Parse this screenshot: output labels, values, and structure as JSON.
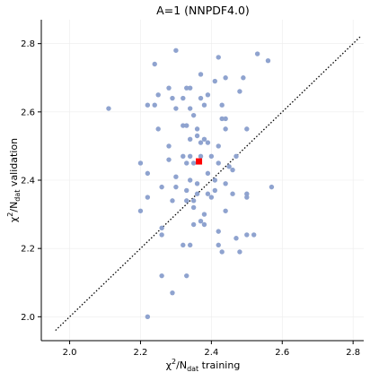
{
  "chart_data": {
    "type": "scatter",
    "title": "A=1 (NNPDF4.0)",
    "xlabel": {
      "prefix": "χ",
      "sup": "2",
      "mid": "/N",
      "sub": "dat",
      "suffix": " training"
    },
    "ylabel": {
      "prefix": "χ",
      "sup": "2",
      "mid": "/N",
      "sub": "dat",
      "suffix": " validation"
    },
    "xlim": [
      1.92,
      2.83
    ],
    "ylim": [
      1.93,
      2.87
    ],
    "xticks": [
      "2.0",
      "2.2",
      "2.4",
      "2.6",
      "2.8"
    ],
    "yticks": [
      "2.0",
      "2.2",
      "2.4",
      "2.6",
      "2.8"
    ],
    "grid": true,
    "colors": {
      "replicas": "#8fa3cf",
      "central": "#ff0000",
      "diagonal": "#000000"
    },
    "diagonal": {
      "x": [
        1.96,
        2.82
      ],
      "y": [
        1.96,
        2.82
      ],
      "style": "dotted"
    },
    "series": [
      {
        "marker": "circle",
        "points": [
          [
            2.3,
            2.78
          ],
          [
            2.42,
            2.76
          ],
          [
            2.53,
            2.77
          ],
          [
            2.56,
            2.75
          ],
          [
            2.24,
            2.74
          ],
          [
            2.37,
            2.71
          ],
          [
            2.44,
            2.7
          ],
          [
            2.49,
            2.7
          ],
          [
            2.41,
            2.69
          ],
          [
            2.28,
            2.67
          ],
          [
            2.33,
            2.67
          ],
          [
            2.34,
            2.67
          ],
          [
            2.25,
            2.65
          ],
          [
            2.29,
            2.64
          ],
          [
            2.32,
            2.64
          ],
          [
            2.37,
            2.64
          ],
          [
            2.48,
            2.66
          ],
          [
            2.39,
            2.65
          ],
          [
            2.22,
            2.62
          ],
          [
            2.24,
            2.62
          ],
          [
            2.3,
            2.61
          ],
          [
            2.34,
            2.61
          ],
          [
            2.38,
            2.62
          ],
          [
            2.43,
            2.62
          ],
          [
            2.11,
            2.61
          ],
          [
            2.35,
            2.59
          ],
          [
            2.43,
            2.58
          ],
          [
            2.44,
            2.58
          ],
          [
            2.32,
            2.56
          ],
          [
            2.33,
            2.56
          ],
          [
            2.25,
            2.55
          ],
          [
            2.36,
            2.55
          ],
          [
            2.44,
            2.55
          ],
          [
            2.5,
            2.55
          ],
          [
            2.36,
            2.53
          ],
          [
            2.38,
            2.52
          ],
          [
            2.37,
            2.51
          ],
          [
            2.39,
            2.51
          ],
          [
            2.34,
            2.52
          ],
          [
            2.28,
            2.5
          ],
          [
            2.42,
            2.5
          ],
          [
            2.32,
            2.47
          ],
          [
            2.34,
            2.47
          ],
          [
            2.37,
            2.47
          ],
          [
            2.4,
            2.47
          ],
          [
            2.47,
            2.47
          ],
          [
            2.28,
            2.46
          ],
          [
            2.35,
            2.45
          ],
          [
            2.33,
            2.45
          ],
          [
            2.42,
            2.45
          ],
          [
            2.2,
            2.45
          ],
          [
            2.45,
            2.44
          ],
          [
            2.46,
            2.43
          ],
          [
            2.22,
            2.42
          ],
          [
            2.39,
            2.42
          ],
          [
            2.3,
            2.41
          ],
          [
            2.41,
            2.4
          ],
          [
            2.34,
            2.4
          ],
          [
            2.36,
            2.39
          ],
          [
            2.44,
            2.39
          ],
          [
            2.26,
            2.38
          ],
          [
            2.3,
            2.38
          ],
          [
            2.33,
            2.37
          ],
          [
            2.41,
            2.37
          ],
          [
            2.57,
            2.38
          ],
          [
            2.36,
            2.36
          ],
          [
            2.39,
            2.36
          ],
          [
            2.46,
            2.36
          ],
          [
            2.5,
            2.36
          ],
          [
            2.22,
            2.35
          ],
          [
            2.4,
            2.35
          ],
          [
            2.5,
            2.35
          ],
          [
            2.33,
            2.34
          ],
          [
            2.35,
            2.34
          ],
          [
            2.29,
            2.34
          ],
          [
            2.35,
            2.32
          ],
          [
            2.44,
            2.31
          ],
          [
            2.38,
            2.3
          ],
          [
            2.2,
            2.31
          ],
          [
            2.37,
            2.28
          ],
          [
            2.35,
            2.27
          ],
          [
            2.38,
            2.27
          ],
          [
            2.26,
            2.26
          ],
          [
            2.26,
            2.24
          ],
          [
            2.42,
            2.25
          ],
          [
            2.47,
            2.23
          ],
          [
            2.5,
            2.24
          ],
          [
            2.52,
            2.24
          ],
          [
            2.34,
            2.21
          ],
          [
            2.32,
            2.21
          ],
          [
            2.42,
            2.21
          ],
          [
            2.43,
            2.19
          ],
          [
            2.48,
            2.19
          ],
          [
            2.26,
            2.12
          ],
          [
            2.33,
            2.12
          ],
          [
            2.29,
            2.07
          ],
          [
            2.22,
            2.0
          ]
        ]
      },
      {
        "marker": "square",
        "points": [
          [
            2.365,
            2.455
          ]
        ]
      }
    ]
  }
}
